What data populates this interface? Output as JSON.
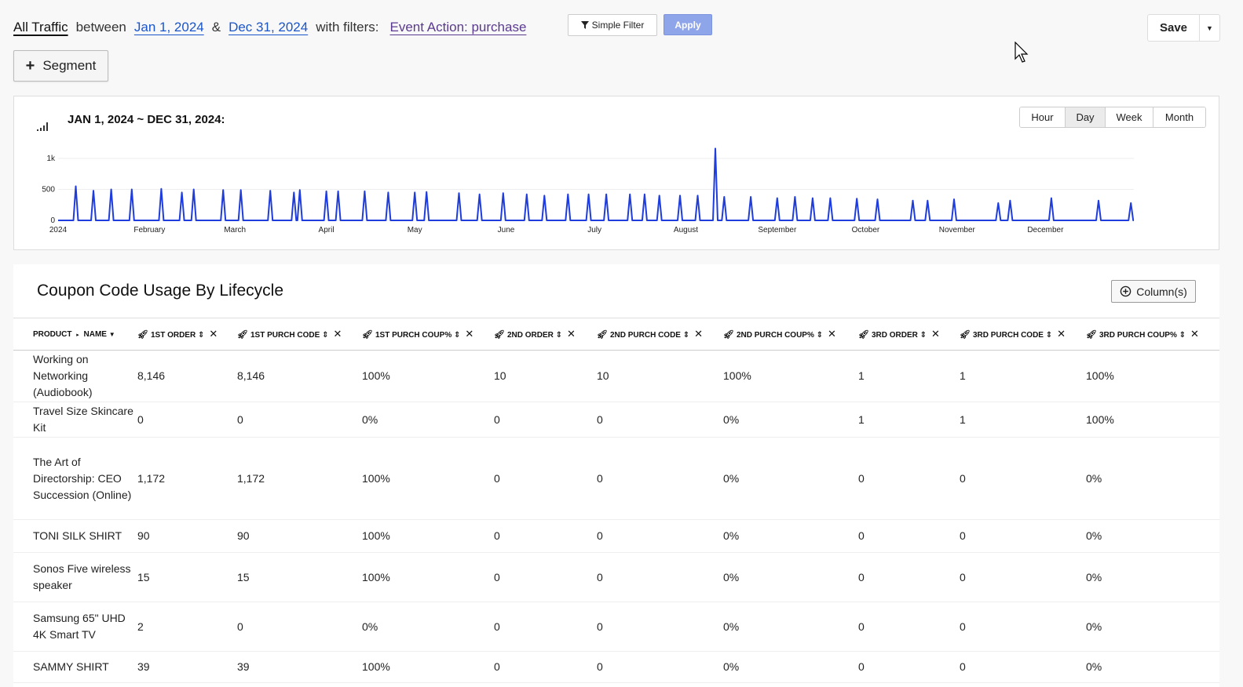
{
  "filterbar": {
    "segment_name": "All Traffic",
    "between": "between",
    "start_date": "Jan 1, 2024",
    "amp": "&",
    "end_date": "Dec 31, 2024",
    "with_filters": "with filters:",
    "filter": "Event Action: purchase",
    "simple_filter": "Simple Filter",
    "apply": "Apply"
  },
  "save": {
    "label": "Save"
  },
  "segment_button": {
    "label": "Segment"
  },
  "chart_panel": {
    "title": "JAN 1, 2024 ~ DEC 31, 2024:",
    "granularity": [
      "Hour",
      "Day",
      "Week",
      "Month"
    ],
    "active_granularity": "Day"
  },
  "chart_data": {
    "type": "line",
    "y_ticks": [
      "0",
      "500",
      "1k"
    ],
    "ylim": [
      0,
      1000
    ],
    "x_tick_labels": [
      "2024",
      "February",
      "March",
      "April",
      "May",
      "June",
      "July",
      "August",
      "September",
      "October",
      "November",
      "December"
    ],
    "series": [
      {
        "color": "#1f3ddc",
        "spikes": [
          {
            "date": "2024-01-07",
            "value": 550
          },
          {
            "date": "2024-01-13",
            "value": 480
          },
          {
            "date": "2024-01-19",
            "value": 500
          },
          {
            "date": "2024-01-26",
            "value": 500
          },
          {
            "date": "2024-02-05",
            "value": 510
          },
          {
            "date": "2024-02-12",
            "value": 450
          },
          {
            "date": "2024-02-16",
            "value": 500
          },
          {
            "date": "2024-02-26",
            "value": 490
          },
          {
            "date": "2024-03-03",
            "value": 490
          },
          {
            "date": "2024-03-13",
            "value": 480
          },
          {
            "date": "2024-03-21",
            "value": 450
          },
          {
            "date": "2024-03-23",
            "value": 490
          },
          {
            "date": "2024-04-01",
            "value": 470
          },
          {
            "date": "2024-04-05",
            "value": 470
          },
          {
            "date": "2024-04-14",
            "value": 470
          },
          {
            "date": "2024-04-22",
            "value": 450
          },
          {
            "date": "2024-05-01",
            "value": 450
          },
          {
            "date": "2024-05-05",
            "value": 460
          },
          {
            "date": "2024-05-16",
            "value": 440
          },
          {
            "date": "2024-05-23",
            "value": 420
          },
          {
            "date": "2024-05-31",
            "value": 440
          },
          {
            "date": "2024-06-08",
            "value": 420
          },
          {
            "date": "2024-06-14",
            "value": 400
          },
          {
            "date": "2024-06-22",
            "value": 420
          },
          {
            "date": "2024-06-29",
            "value": 420
          },
          {
            "date": "2024-07-05",
            "value": 420
          },
          {
            "date": "2024-07-13",
            "value": 420
          },
          {
            "date": "2024-07-18",
            "value": 420
          },
          {
            "date": "2024-07-23",
            "value": 400
          },
          {
            "date": "2024-07-30",
            "value": 400
          },
          {
            "date": "2024-08-05",
            "value": 400
          },
          {
            "date": "2024-08-11",
            "value": 1160
          },
          {
            "date": "2024-08-14",
            "value": 380
          },
          {
            "date": "2024-08-23",
            "value": 380
          },
          {
            "date": "2024-09-01",
            "value": 360
          },
          {
            "date": "2024-09-07",
            "value": 380
          },
          {
            "date": "2024-09-13",
            "value": 360
          },
          {
            "date": "2024-09-19",
            "value": 360
          },
          {
            "date": "2024-09-28",
            "value": 350
          },
          {
            "date": "2024-10-05",
            "value": 340
          },
          {
            "date": "2024-10-17",
            "value": 320
          },
          {
            "date": "2024-10-22",
            "value": 320
          },
          {
            "date": "2024-10-31",
            "value": 340
          },
          {
            "date": "2024-11-15",
            "value": 280
          },
          {
            "date": "2024-11-19",
            "value": 320
          },
          {
            "date": "2024-12-03",
            "value": 360
          },
          {
            "date": "2024-12-19",
            "value": 320
          },
          {
            "date": "2024-12-30",
            "value": 280
          }
        ]
      }
    ]
  },
  "table": {
    "title": "Coupon Code Usage By Lifecycle",
    "columns_button": "Column(s)",
    "headers": [
      "PRODUCT",
      "NAME",
      "1ST ORDER",
      "1ST PURCH CODE",
      "1ST PURCH COUP%",
      "2ND ORDER",
      "2ND PURCH CODE",
      "2ND PURCH COUP%",
      "3RD ORDER",
      "3RD PURCH CODE",
      "3RD PURCH COUP%"
    ],
    "rows": [
      {
        "name": "Working on Networking (Audiobook)",
        "cells": [
          "8,146",
          "8,146",
          "100%",
          "10",
          "10",
          "100%",
          "1",
          "1",
          "100%"
        ]
      },
      {
        "name": "Travel Size Skincare Kit",
        "cells": [
          "0",
          "0",
          "0%",
          "0",
          "0",
          "0%",
          "1",
          "1",
          "100%"
        ]
      },
      {
        "name": "The Art of Directorship: CEO Succession (Online)",
        "cells": [
          "1,172",
          "1,172",
          "100%",
          "0",
          "0",
          "0%",
          "0",
          "0",
          "0%"
        ]
      },
      {
        "name": "TONI SILK SHIRT",
        "cells": [
          "90",
          "90",
          "100%",
          "0",
          "0",
          "0%",
          "0",
          "0",
          "0%"
        ]
      },
      {
        "name": "Sonos Five wireless speaker",
        "cells": [
          "15",
          "15",
          "100%",
          "0",
          "0",
          "0%",
          "0",
          "0",
          "0%"
        ]
      },
      {
        "name": "Samsung 65\" UHD 4K Smart TV",
        "cells": [
          "2",
          "0",
          "0%",
          "0",
          "0",
          "0%",
          "0",
          "0",
          "0%"
        ]
      },
      {
        "name": "SAMMY SHIRT",
        "cells": [
          "39",
          "39",
          "100%",
          "0",
          "0",
          "0%",
          "0",
          "0",
          "0%"
        ]
      }
    ]
  }
}
